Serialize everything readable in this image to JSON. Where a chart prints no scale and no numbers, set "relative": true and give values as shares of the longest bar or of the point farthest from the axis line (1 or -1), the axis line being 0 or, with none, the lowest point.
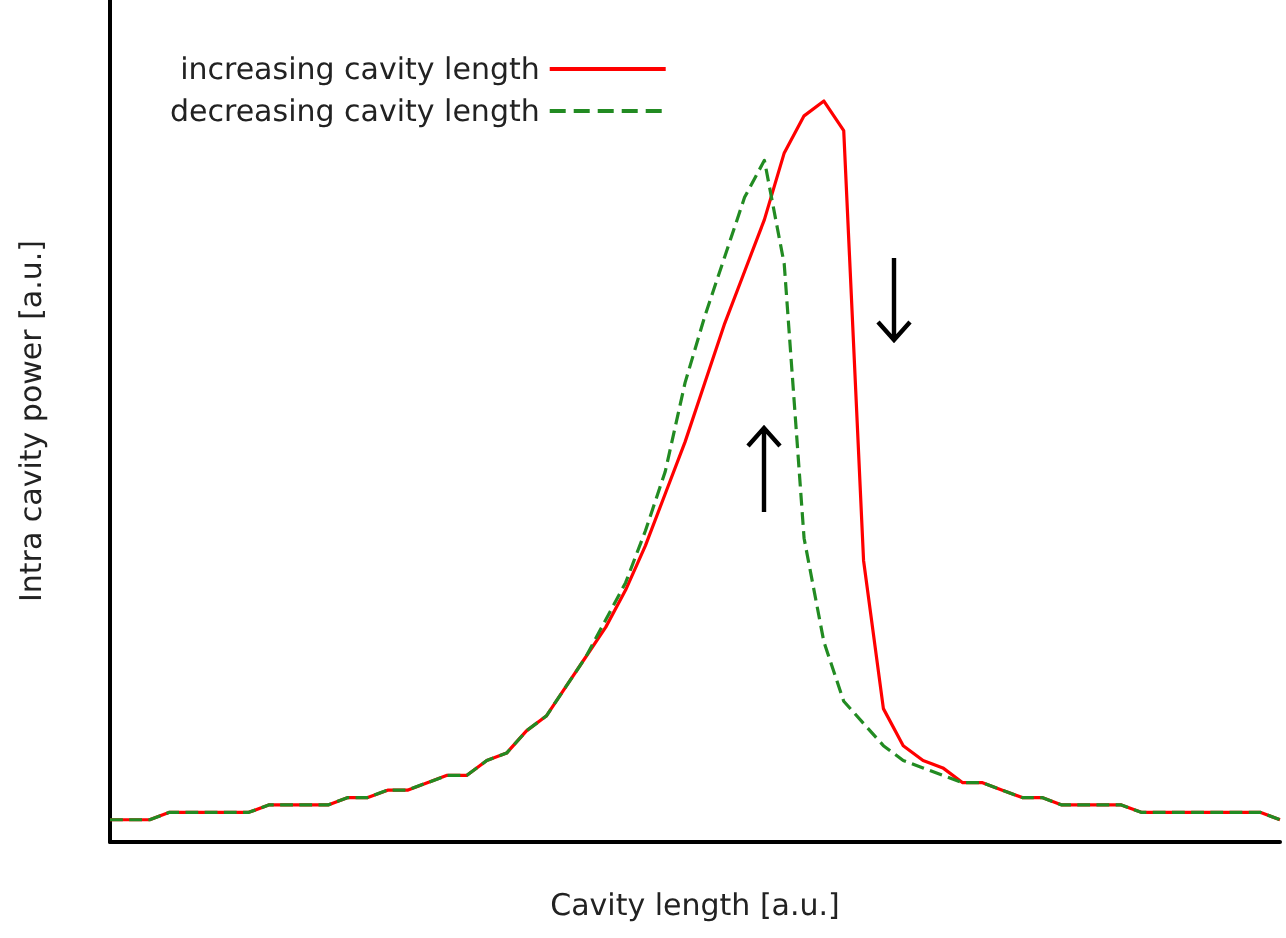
{
  "chart_data": {
    "type": "line",
    "relative": true,
    "xlabel": "Cavity length [a.u.]",
    "ylabel": "Intra cavity power [a.u.]",
    "legend": "top left",
    "marker": "none",
    "grid": false,
    "categories": [
      null,
      null,
      null,
      null,
      null,
      null,
      null,
      null,
      null,
      null,
      null,
      null,
      null,
      null,
      null,
      null,
      null,
      null,
      null,
      null,
      null,
      null,
      null,
      null,
      null,
      null,
      null,
      null,
      null,
      null,
      null,
      null,
      null,
      null,
      null,
      null,
      null,
      null,
      null,
      null,
      null,
      null,
      null,
      null,
      null,
      null,
      null,
      null,
      null,
      null,
      null,
      null,
      null,
      null,
      null,
      null,
      null,
      null,
      null,
      null
    ],
    "series": [
      {
        "name": "increasing cavity length",
        "color": "#ff0000",
        "line_style": "solid",
        "values": [
          0.03,
          0.03,
          0.03,
          0.04,
          0.04,
          0.04,
          0.04,
          0.04,
          0.05,
          0.05,
          0.05,
          0.05,
          0.06,
          0.06,
          0.07,
          0.07,
          0.08,
          0.09,
          0.09,
          0.11,
          0.12,
          0.15,
          0.17,
          0.21,
          0.25,
          0.29,
          0.34,
          0.4,
          0.47,
          0.54,
          0.62,
          0.7,
          0.77,
          0.84,
          0.93,
          0.98,
          1.0,
          0.96,
          0.38,
          0.18,
          0.13,
          0.11,
          0.1,
          0.08,
          0.08,
          0.07,
          0.06,
          0.06,
          0.05,
          0.05,
          0.05,
          0.05,
          0.04,
          0.04,
          0.04,
          0.04,
          0.04,
          0.04,
          0.04,
          0.03
        ]
      },
      {
        "name": "decreasing cavity length",
        "color": "#228b22",
        "line_style": "dashed",
        "values": [
          0.03,
          0.03,
          0.03,
          0.04,
          0.04,
          0.04,
          0.04,
          0.04,
          0.05,
          0.05,
          0.05,
          0.05,
          0.06,
          0.06,
          0.07,
          0.07,
          0.08,
          0.09,
          0.09,
          0.11,
          0.12,
          0.15,
          0.17,
          0.21,
          0.25,
          0.3,
          0.35,
          0.42,
          0.5,
          0.62,
          0.71,
          0.79,
          0.87,
          0.92,
          0.78,
          0.41,
          0.27,
          0.19,
          0.16,
          0.13,
          0.11,
          0.1,
          0.09,
          0.08,
          0.08,
          0.07,
          0.06,
          0.06,
          0.05,
          0.05,
          0.05,
          0.05,
          0.04,
          0.04,
          0.04,
          0.04,
          0.04,
          0.04,
          0.04,
          0.03
        ]
      }
    ]
  }
}
